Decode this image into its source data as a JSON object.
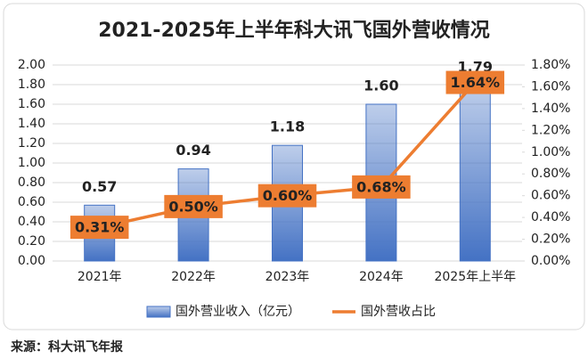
{
  "chart_data": {
    "type": "bar",
    "title": "2021-2025年上半年科大讯飞国外营收情况",
    "categories": [
      "2021年",
      "2022年",
      "2023年",
      "2024年",
      "2025年上半年"
    ],
    "series": [
      {
        "name": "国外营业收入（亿元）",
        "type": "bar",
        "color": "#4472c4",
        "values": [
          0.57,
          0.94,
          1.18,
          1.6,
          1.79
        ],
        "value_labels": [
          "0.57",
          "0.94",
          "1.18",
          "1.60",
          "1.79"
        ]
      },
      {
        "name": "国外营收占比",
        "type": "line",
        "axis": "y2",
        "color": "#ed7d31",
        "values": [
          0.31,
          0.5,
          0.6,
          0.68,
          1.64
        ],
        "value_labels": [
          "0.31%",
          "0.50%",
          "0.60%",
          "0.68%",
          "1.64%"
        ]
      }
    ],
    "ylim": [
      0,
      2
    ],
    "yticks": [
      {
        "value": 0,
        "label": "0.00"
      },
      {
        "value": 0.2,
        "label": "0.20"
      },
      {
        "value": 0.4,
        "label": "0.40"
      },
      {
        "value": 0.6,
        "label": "0.60"
      },
      {
        "value": 0.8,
        "label": "0.80"
      },
      {
        "value": 1,
        "label": "1.00"
      },
      {
        "value": 1.2,
        "label": "1.20"
      },
      {
        "value": 1.4,
        "label": "1.40"
      },
      {
        "value": 1.6,
        "label": "1.60"
      },
      {
        "value": 1.8,
        "label": "1.80"
      },
      {
        "value": 2,
        "label": "2.00"
      }
    ],
    "y2lim": [
      0,
      1.8
    ],
    "y2ticks": [
      {
        "value": 0,
        "label": "0.00%"
      },
      {
        "value": 0.2,
        "label": "0.20%"
      },
      {
        "value": 0.4,
        "label": "0.40%"
      },
      {
        "value": 0.6,
        "label": "0.60%"
      },
      {
        "value": 0.8,
        "label": "0.80%"
      },
      {
        "value": 1,
        "label": "1.00%"
      },
      {
        "value": 1.2,
        "label": "1.20%"
      },
      {
        "value": 1.4,
        "label": "1.40%"
      },
      {
        "value": 1.6,
        "label": "1.60%"
      },
      {
        "value": 1.8,
        "label": "1.80%"
      }
    ],
    "grid": true,
    "legend": "bottom",
    "source": "来源：科大讯飞年报"
  }
}
